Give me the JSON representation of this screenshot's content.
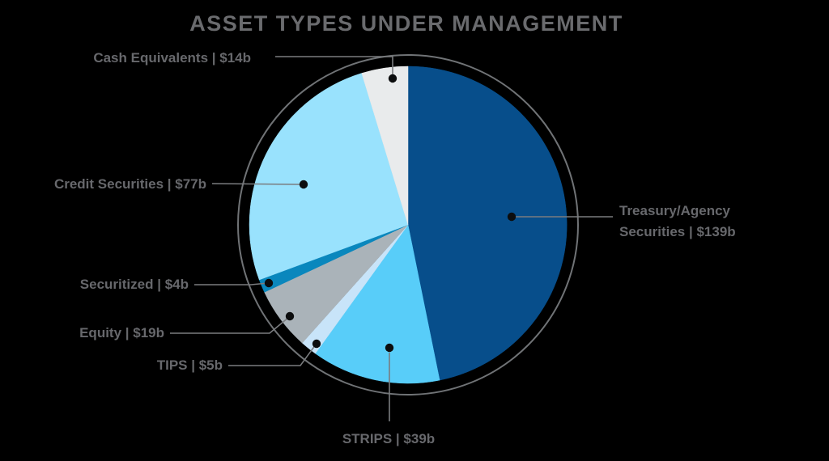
{
  "title": "ASSET TYPES UNDER MANAGEMENT",
  "background_color": "#000000",
  "text_color": "#6A6B6E",
  "chart_data": {
    "type": "pie",
    "title": "ASSET TYPES UNDER MANAGEMENT",
    "unit": "$ billions",
    "direction": "clockwise",
    "start_angle_deg": 0,
    "legend_position": "outside-callouts",
    "ring_color": "#707376",
    "leader_line_color": "#7A7C7F",
    "dot_color": "#0C0D0E",
    "slices": [
      {
        "id": "treasury",
        "label": "Treasury/Agency Securities",
        "value": 139,
        "value_label": "$139b",
        "display_lines": [
          "Treasury/Agency",
          "Securities | $139b"
        ],
        "color": "#074E8B"
      },
      {
        "id": "strips",
        "label": "STRIPS",
        "value": 39,
        "value_label": "$39b",
        "display": "STRIPS | $39b",
        "color": "#58CDF9"
      },
      {
        "id": "tips",
        "label": "TIPS",
        "value": 5,
        "value_label": "$5b",
        "display": "TIPS | $5b",
        "color": "#C8E4F9"
      },
      {
        "id": "equity",
        "label": "Equity",
        "value": 19,
        "value_label": "$19b",
        "display": "Equity | $19b",
        "color": "#AAB3B9"
      },
      {
        "id": "securitized",
        "label": "Securitized",
        "value": 4,
        "value_label": "$4b",
        "display": "Securitized | $4b",
        "color": "#0A87BD"
      },
      {
        "id": "credit",
        "label": "Credit Securities",
        "value": 77,
        "value_label": "$77b",
        "display": "Credit Securities | $77b",
        "color": "#99E2FD"
      },
      {
        "id": "cash",
        "label": "Cash Equivalents",
        "value": 14,
        "value_label": "$14b",
        "display": "Cash Equivalents | $14b",
        "color": "#E9EBEC"
      }
    ]
  }
}
